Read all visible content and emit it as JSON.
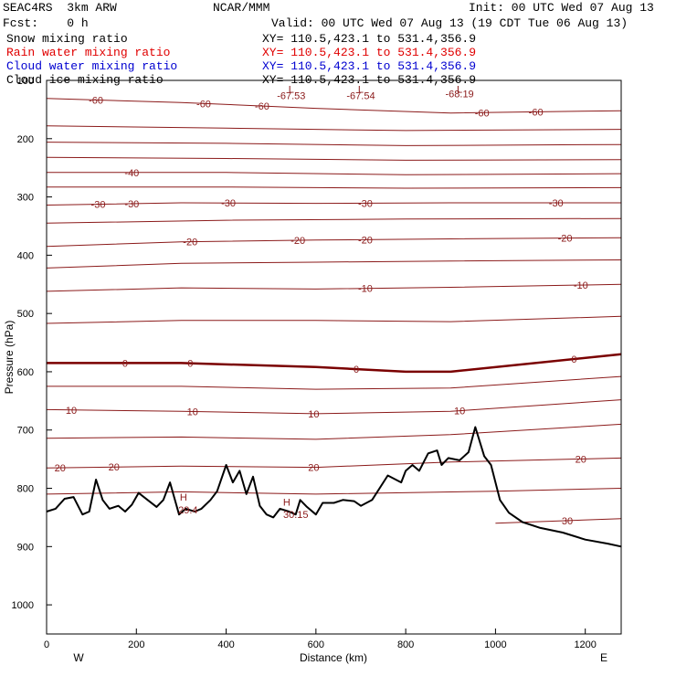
{
  "header": {
    "model": "SEAC4RS  3km ARW",
    "fcst": "Fcst:    0 h",
    "source": "NCAR/MMM",
    "init": "Init: 00 UTC Wed 07 Aug 13",
    "valid": "Valid: 00 UTC Wed 07 Aug 13 (19 CDT Tue 06 Aug 13)"
  },
  "legend": [
    {
      "name": "Snow mixing ratio",
      "xy": "XY= 110.5,423.1 to 531.4,356.9",
      "color": "#000000"
    },
    {
      "name": "Rain water mixing ratio",
      "xy": "XY= 110.5,423.1 to 531.4,356.9",
      "color": "#e00000"
    },
    {
      "name": "Cloud water mixing ratio",
      "xy": "XY= 110.5,423.1 to 531.4,356.9",
      "color": "#0000d0"
    },
    {
      "name": "Cloud ice mixing ratio",
      "xy": "XY= 110.5,423.1 to 531.4,356.9",
      "color": "#000000"
    }
  ],
  "chart_data": {
    "type": "line",
    "xlabel": "Distance (km)",
    "ylabel": "Pressure (hPa)",
    "xlim": [
      0,
      1280
    ],
    "ylim": [
      1050,
      100
    ],
    "xticks": [
      0,
      200,
      400,
      600,
      800,
      1000,
      1200
    ],
    "yticks": [
      100,
      200,
      300,
      400,
      500,
      600,
      700,
      800,
      900,
      1000
    ],
    "x_end_labels": {
      "left": "W",
      "right": "E"
    },
    "colors": {
      "isotherm": "#8b1a1a",
      "zero_isotherm": "#7a0000",
      "terrain": "#000000"
    },
    "isotherms": [
      {
        "value": -60,
        "p": [
          [
            0,
            131
          ],
          [
            300,
            138
          ],
          [
            600,
            148
          ],
          [
            900,
            156
          ],
          [
            1280,
            152
          ]
        ],
        "labels": [
          {
            "x": 110,
            "text": "-60"
          },
          {
            "x": 350,
            "text": "-60"
          },
          {
            "x": 480,
            "text": "-60"
          },
          {
            "x": 970,
            "text": "-60"
          },
          {
            "x": 1090,
            "text": "-60"
          }
        ]
      },
      {
        "value": -55,
        "p": [
          [
            0,
            178
          ],
          [
            400,
            182
          ],
          [
            800,
            186
          ],
          [
            1280,
            184
          ]
        ],
        "labels": []
      },
      {
        "value": -50,
        "p": [
          [
            0,
            206
          ],
          [
            400,
            208
          ],
          [
            800,
            212
          ],
          [
            1280,
            210
          ]
        ],
        "labels": []
      },
      {
        "value": -45,
        "p": [
          [
            0,
            232
          ],
          [
            400,
            234
          ],
          [
            800,
            237
          ],
          [
            1280,
            236
          ]
        ],
        "labels": []
      },
      {
        "value": -40,
        "p": [
          [
            0,
            258
          ],
          [
            400,
            258
          ],
          [
            800,
            262
          ],
          [
            1280,
            260
          ]
        ],
        "labels": [
          {
            "x": 190,
            "text": "-40"
          }
        ]
      },
      {
        "value": -35,
        "p": [
          [
            0,
            283
          ],
          [
            400,
            283
          ],
          [
            800,
            285
          ],
          [
            1280,
            284
          ]
        ],
        "labels": []
      },
      {
        "value": -30,
        "p": [
          [
            0,
            314
          ],
          [
            300,
            310
          ],
          [
            600,
            311
          ],
          [
            900,
            310
          ],
          [
            1280,
            310
          ]
        ],
        "labels": [
          {
            "x": 115,
            "text": "-30"
          },
          {
            "x": 190,
            "text": "-30"
          },
          {
            "x": 405,
            "text": "-30"
          },
          {
            "x": 710,
            "text": "-30"
          },
          {
            "x": 1135,
            "text": "-30"
          }
        ]
      },
      {
        "value": -25,
        "p": [
          [
            0,
            345
          ],
          [
            400,
            340
          ],
          [
            800,
            338
          ],
          [
            1280,
            337
          ]
        ],
        "labels": []
      },
      {
        "value": -20,
        "p": [
          [
            0,
            385
          ],
          [
            300,
            377
          ],
          [
            600,
            374
          ],
          [
            900,
            372
          ],
          [
            1280,
            370
          ]
        ],
        "labels": [
          {
            "x": 320,
            "text": "-20"
          },
          {
            "x": 560,
            "text": "-20"
          },
          {
            "x": 710,
            "text": "-20"
          },
          {
            "x": 1155,
            "text": "-20"
          }
        ]
      },
      {
        "value": -15,
        "p": [
          [
            0,
            422
          ],
          [
            300,
            414
          ],
          [
            600,
            412
          ],
          [
            900,
            410
          ],
          [
            1280,
            408
          ]
        ],
        "labels": []
      },
      {
        "value": -10,
        "p": [
          [
            0,
            462
          ],
          [
            300,
            456
          ],
          [
            600,
            458
          ],
          [
            900,
            455
          ],
          [
            1280,
            450
          ]
        ],
        "labels": [
          {
            "x": 710,
            "text": "-10"
          },
          {
            "x": 1190,
            "text": "-10"
          }
        ]
      },
      {
        "value": -5,
        "p": [
          [
            0,
            517
          ],
          [
            300,
            512
          ],
          [
            600,
            512
          ],
          [
            900,
            514
          ],
          [
            1280,
            505
          ]
        ],
        "labels": []
      },
      {
        "value": 0,
        "p": [
          [
            0,
            585
          ],
          [
            300,
            585
          ],
          [
            600,
            592
          ],
          [
            800,
            600
          ],
          [
            900,
            600
          ],
          [
            1280,
            570
          ]
        ],
        "labels": [
          {
            "x": 175,
            "text": "0"
          },
          {
            "x": 320,
            "text": "0"
          },
          {
            "x": 690,
            "text": "0"
          },
          {
            "x": 1175,
            "text": "0"
          }
        ]
      },
      {
        "value": 5,
        "p": [
          [
            0,
            625
          ],
          [
            300,
            625
          ],
          [
            600,
            630
          ],
          [
            900,
            628
          ],
          [
            1280,
            608
          ]
        ],
        "labels": []
      },
      {
        "value": 10,
        "p": [
          [
            0,
            665
          ],
          [
            300,
            668
          ],
          [
            600,
            672
          ],
          [
            900,
            668
          ],
          [
            1280,
            648
          ]
        ],
        "labels": [
          {
            "x": 55,
            "text": "10"
          },
          {
            "x": 325,
            "text": "10"
          },
          {
            "x": 595,
            "text": "10"
          },
          {
            "x": 920,
            "text": "10"
          }
        ]
      },
      {
        "value": 15,
        "p": [
          [
            0,
            714
          ],
          [
            300,
            712
          ],
          [
            600,
            716
          ],
          [
            900,
            708
          ],
          [
            1280,
            690
          ]
        ],
        "labels": []
      },
      {
        "value": 20,
        "p": [
          [
            0,
            765
          ],
          [
            300,
            762
          ],
          [
            600,
            764
          ],
          [
            900,
            755
          ],
          [
            1280,
            748
          ]
        ],
        "labels": [
          {
            "x": 30,
            "text": "20"
          },
          {
            "x": 150,
            "text": "20"
          },
          {
            "x": 595,
            "text": "20"
          },
          {
            "x": 1190,
            "text": "20"
          }
        ]
      },
      {
        "value": 25,
        "p": [
          [
            0,
            810
          ],
          [
            300,
            806
          ],
          [
            600,
            810
          ],
          [
            1000,
            805
          ],
          [
            1280,
            800
          ]
        ],
        "labels": []
      },
      {
        "value": 30,
        "p": [
          [
            1000,
            860
          ],
          [
            1280,
            852
          ]
        ],
        "labels": [
          {
            "x": 1160,
            "text": "30"
          }
        ]
      }
    ],
    "annotations": [
      {
        "x": 545,
        "p": 121,
        "text": "L"
      },
      {
        "x": 545,
        "p": 132,
        "text": "-67.53"
      },
      {
        "x": 700,
        "p": 121,
        "text": "L"
      },
      {
        "x": 700,
        "p": 132,
        "text": "-67.54"
      },
      {
        "x": 920,
        "p": 121,
        "text": "L"
      },
      {
        "x": 920,
        "p": 129,
        "text": "-68.19"
      },
      {
        "x": 535,
        "p": 830,
        "text": "H"
      },
      {
        "x": 555,
        "p": 851,
        "text": "30.15"
      },
      {
        "x": 305,
        "p": 821,
        "text": "H"
      },
      {
        "x": 315,
        "p": 843,
        "text": "29.4"
      }
    ],
    "terrain": [
      [
        0,
        840
      ],
      [
        20,
        835
      ],
      [
        40,
        818
      ],
      [
        60,
        815
      ],
      [
        80,
        845
      ],
      [
        95,
        840
      ],
      [
        110,
        785
      ],
      [
        125,
        820
      ],
      [
        140,
        835
      ],
      [
        160,
        830
      ],
      [
        175,
        840
      ],
      [
        190,
        828
      ],
      [
        205,
        808
      ],
      [
        225,
        820
      ],
      [
        245,
        832
      ],
      [
        260,
        820
      ],
      [
        275,
        790
      ],
      [
        295,
        845
      ],
      [
        310,
        835
      ],
      [
        330,
        840
      ],
      [
        345,
        835
      ],
      [
        365,
        820
      ],
      [
        380,
        805
      ],
      [
        400,
        760
      ],
      [
        415,
        790
      ],
      [
        430,
        770
      ],
      [
        445,
        810
      ],
      [
        460,
        780
      ],
      [
        475,
        830
      ],
      [
        490,
        845
      ],
      [
        505,
        850
      ],
      [
        520,
        835
      ],
      [
        540,
        840
      ],
      [
        555,
        845
      ],
      [
        565,
        820
      ],
      [
        580,
        832
      ],
      [
        600,
        845
      ],
      [
        615,
        825
      ],
      [
        640,
        825
      ],
      [
        660,
        820
      ],
      [
        685,
        822
      ],
      [
        700,
        830
      ],
      [
        725,
        820
      ],
      [
        760,
        778
      ],
      [
        790,
        790
      ],
      [
        800,
        770
      ],
      [
        815,
        760
      ],
      [
        830,
        770
      ],
      [
        850,
        740
      ],
      [
        870,
        735
      ],
      [
        880,
        760
      ],
      [
        895,
        748
      ],
      [
        920,
        752
      ],
      [
        940,
        738
      ],
      [
        955,
        695
      ],
      [
        975,
        745
      ],
      [
        990,
        760
      ],
      [
        1010,
        820
      ],
      [
        1030,
        842
      ],
      [
        1060,
        858
      ],
      [
        1100,
        868
      ],
      [
        1150,
        876
      ],
      [
        1200,
        888
      ],
      [
        1250,
        895
      ],
      [
        1280,
        900
      ]
    ]
  }
}
